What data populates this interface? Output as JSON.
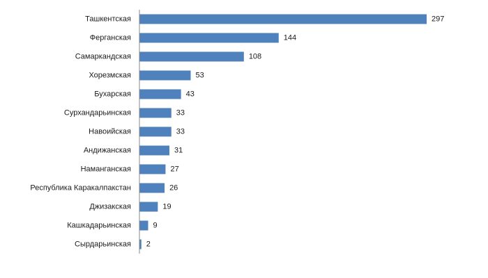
{
  "chart_data": {
    "type": "bar",
    "orientation": "horizontal",
    "categories": [
      "Ташкентская",
      "Ферганская",
      "Самаркандская",
      "Хорезмская",
      "Бухарская",
      "Сурхандарьинская",
      "Навоийская",
      "Андижанская",
      "Наманганская",
      "Республика Каракалпакстан",
      "Джизакская",
      "Кашкадарьинская",
      "Сырдарьинская"
    ],
    "values": [
      297,
      144,
      108,
      53,
      43,
      33,
      33,
      31,
      27,
      26,
      19,
      9,
      2
    ],
    "color": "#4f81bd"
  }
}
